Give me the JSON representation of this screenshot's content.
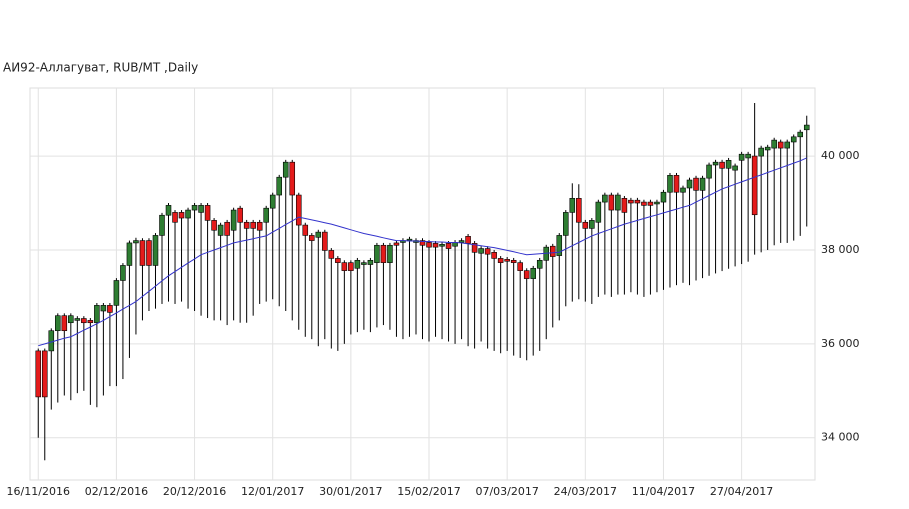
{
  "chart_data": {
    "type": "candlestick",
    "title": "АИ92-Аллагуват,  RUB/MT ,Daily",
    "categories": [
      "16/11/2016",
      null,
      null,
      null,
      null,
      null,
      null,
      null,
      null,
      null,
      null,
      null,
      "02/12/2016",
      null,
      null,
      null,
      null,
      null,
      null,
      null,
      null,
      null,
      null,
      null,
      "20/12/2016",
      null,
      null,
      null,
      null,
      null,
      null,
      null,
      null,
      null,
      null,
      null,
      "12/01/2017",
      null,
      null,
      null,
      null,
      null,
      null,
      null,
      null,
      null,
      null,
      null,
      "30/01/2017",
      null,
      null,
      null,
      null,
      null,
      null,
      null,
      null,
      null,
      null,
      null,
      "15/02/2017",
      null,
      null,
      null,
      null,
      null,
      null,
      null,
      null,
      null,
      null,
      null,
      "07/03/2017",
      null,
      null,
      null,
      null,
      null,
      null,
      null,
      null,
      null,
      null,
      null,
      "24/03/2017",
      null,
      null,
      null,
      null,
      null,
      null,
      null,
      null,
      null,
      null,
      null,
      "11/04/2017",
      null,
      null,
      null,
      null,
      null,
      null,
      null,
      null,
      null,
      null,
      null,
      "27/04/2017",
      null,
      null,
      null,
      null,
      null,
      null,
      null,
      null,
      null,
      null
    ],
    "open": [
      35850,
      35850,
      35850,
      36280,
      36600,
      36450,
      36500,
      36540,
      36500,
      36450,
      36700,
      36820,
      36820,
      37350,
      37670,
      38150,
      38200,
      38200,
      37670,
      38310,
      38740,
      38800,
      38800,
      38680,
      38850,
      38800,
      38950,
      38630,
      38310,
      38590,
      38420,
      38890,
      38590,
      38590,
      38590,
      38590,
      38890,
      39170,
      39550,
      39870,
      39170,
      38530,
      38310,
      38270,
      38380,
      37990,
      37820,
      37730,
      37730,
      37610,
      37690,
      37690,
      37730,
      38100,
      37730,
      38150,
      38160,
      38200,
      38160,
      38200,
      38160,
      38140,
      38080,
      38140,
      38080,
      38160,
      38290,
      38140,
      37930,
      38030,
      37950,
      37820,
      37800,
      37780,
      37730,
      37560,
      37390,
      37610,
      37780,
      38080,
      37880,
      38310,
      38800,
      39100,
      38590,
      38460,
      38590,
      39020,
      39170,
      38850,
      39100,
      39060,
      39060,
      39020,
      39020,
      38980,
      39020,
      39230,
      39590,
      39230,
      39320,
      39530,
      39270,
      39530,
      39810,
      39870,
      39740,
      39700,
      39910,
      39960,
      40000,
      40000,
      40130,
      40170,
      40300,
      40170,
      40300,
      40410,
      40560
    ],
    "high": [
      35900,
      35900,
      36330,
      36650,
      36650,
      36650,
      36590,
      36590,
      36550,
      36870,
      36870,
      36870,
      37400,
      37720,
      38200,
      38260,
      38250,
      38250,
      38360,
      38790,
      39000,
      38850,
      38850,
      38900,
      39000,
      39000,
      39000,
      38680,
      38580,
      38640,
      38900,
      38940,
      38640,
      38640,
      38640,
      38940,
      39220,
      39600,
      39920,
      39920,
      39220,
      38580,
      38360,
      38430,
      38430,
      38040,
      37870,
      37780,
      37780,
      37830,
      37780,
      37830,
      38150,
      38150,
      38150,
      38200,
      38250,
      38280,
      38250,
      38250,
      38210,
      38190,
      38170,
      38190,
      38210,
      38250,
      38340,
      38190,
      38080,
      38080,
      38000,
      37870,
      37850,
      37830,
      37780,
      37610,
      37660,
      37830,
      38110,
      38130,
      38360,
      38850,
      39420,
      39400,
      38640,
      38680,
      39070,
      39220,
      39220,
      39220,
      39150,
      39110,
      39110,
      39070,
      39070,
      39070,
      39280,
      39640,
      39640,
      39370,
      39540,
      39580,
      39580,
      39860,
      39920,
      39920,
      39960,
      39840,
      40090,
      40090,
      41130,
      40220,
      40240,
      40390,
      40350,
      40350,
      40460,
      40560,
      40860
    ],
    "low": [
      34000,
      33520,
      34600,
      34750,
      34900,
      34800,
      34950,
      35000,
      34700,
      34650,
      34900,
      35100,
      35100,
      35250,
      35700,
      36200,
      36500,
      36700,
      36750,
      36850,
      36900,
      36850,
      36900,
      36750,
      36700,
      36600,
      36550,
      36500,
      36500,
      36400,
      36500,
      36450,
      36450,
      36600,
      36850,
      36900,
      36950,
      36800,
      36700,
      36500,
      36300,
      36150,
      36100,
      35950,
      36100,
      35900,
      35850,
      36000,
      36200,
      36250,
      36300,
      36250,
      36350,
      36400,
      36300,
      36150,
      36100,
      36150,
      36200,
      36100,
      36050,
      36150,
      36100,
      36050,
      36000,
      36100,
      35950,
      35900,
      36050,
      35900,
      35850,
      35800,
      35850,
      35750,
      35700,
      35650,
      35750,
      35850,
      36100,
      36350,
      36500,
      36800,
      36900,
      36950,
      36900,
      36850,
      37000,
      37050,
      37000,
      37050,
      37050,
      37100,
      37050,
      37000,
      37050,
      37100,
      37150,
      37200,
      37250,
      37300,
      37250,
      37350,
      37400,
      37450,
      37500,
      37550,
      37600,
      37650,
      37700,
      37750,
      37900,
      37950,
      38000,
      38100,
      38150,
      38150,
      38200,
      38300,
      38500
    ],
    "close": [
      34870,
      34870,
      36280,
      36600,
      36280,
      36600,
      36540,
      36450,
      36450,
      36820,
      36820,
      36670,
      37350,
      37670,
      38150,
      38200,
      37670,
      37670,
      38310,
      38740,
      38950,
      38590,
      38680,
      38850,
      38950,
      38950,
      38630,
      38420,
      38530,
      38310,
      38850,
      38590,
      38460,
      38460,
      38420,
      38890,
      39170,
      39550,
      39870,
      39170,
      38530,
      38310,
      38200,
      38380,
      37990,
      37820,
      37730,
      37560,
      37560,
      37780,
      37730,
      37780,
      38100,
      37730,
      38100,
      38100,
      38200,
      38230,
      38200,
      38100,
      38060,
      38060,
      38120,
      38030,
      38160,
      38200,
      38140,
      37950,
      38030,
      37910,
      37820,
      37730,
      37760,
      37730,
      37560,
      37390,
      37610,
      37780,
      38060,
      37860,
      38310,
      38800,
      39100,
      38590,
      38460,
      38630,
      39020,
      39170,
      38850,
      39170,
      38800,
      39000,
      39000,
      38950,
      38950,
      39020,
      39230,
      39590,
      39230,
      39320,
      39490,
      39270,
      39530,
      39810,
      39870,
      39740,
      39910,
      39790,
      40040,
      40040,
      38750,
      40170,
      40190,
      40340,
      40170,
      40300,
      40410,
      40510,
      40660
    ],
    "up_color": "#2e7d32",
    "down_color": "#e41b1b",
    "moving_average": {
      "color": "#3333cc",
      "values": [
        35960,
        36000,
        36040,
        36080,
        36120,
        36150,
        36220,
        36290,
        36360,
        36430,
        36500,
        36580,
        36660,
        36740,
        36820,
        36900,
        37010,
        37120,
        37230,
        37340,
        37450,
        37540,
        37630,
        37720,
        37810,
        37900,
        37950,
        38000,
        38050,
        38100,
        38150,
        38180,
        38210,
        38240,
        38270,
        38300,
        38380,
        38460,
        38540,
        38620,
        38700,
        38670,
        38640,
        38610,
        38580,
        38550,
        38510,
        38470,
        38430,
        38390,
        38350,
        38320,
        38290,
        38260,
        38230,
        38200,
        38200,
        38190,
        38190,
        38180,
        38180,
        38170,
        38170,
        38160,
        38160,
        38150,
        38130,
        38110,
        38090,
        38070,
        38050,
        38020,
        37990,
        37960,
        37930,
        37900,
        37910,
        37920,
        37930,
        37940,
        37950,
        38020,
        38090,
        38160,
        38230,
        38300,
        38350,
        38400,
        38450,
        38500,
        38550,
        38590,
        38630,
        38670,
        38710,
        38750,
        38790,
        38830,
        38870,
        38910,
        38950,
        39020,
        39090,
        39160,
        39230,
        39300,
        39350,
        39400,
        39450,
        39500,
        39550,
        39600,
        39650,
        39700,
        39750,
        39800,
        39850,
        39900,
        39960
      ]
    },
    "ylim": [
      33100,
      41450
    ],
    "yticks": [
      {
        "value": 34000,
        "label": "34 000"
      },
      {
        "value": 36000,
        "label": "36 000"
      },
      {
        "value": 38000,
        "label": "38 000"
      },
      {
        "value": 40000,
        "label": "40 000"
      }
    ],
    "grid": true
  }
}
